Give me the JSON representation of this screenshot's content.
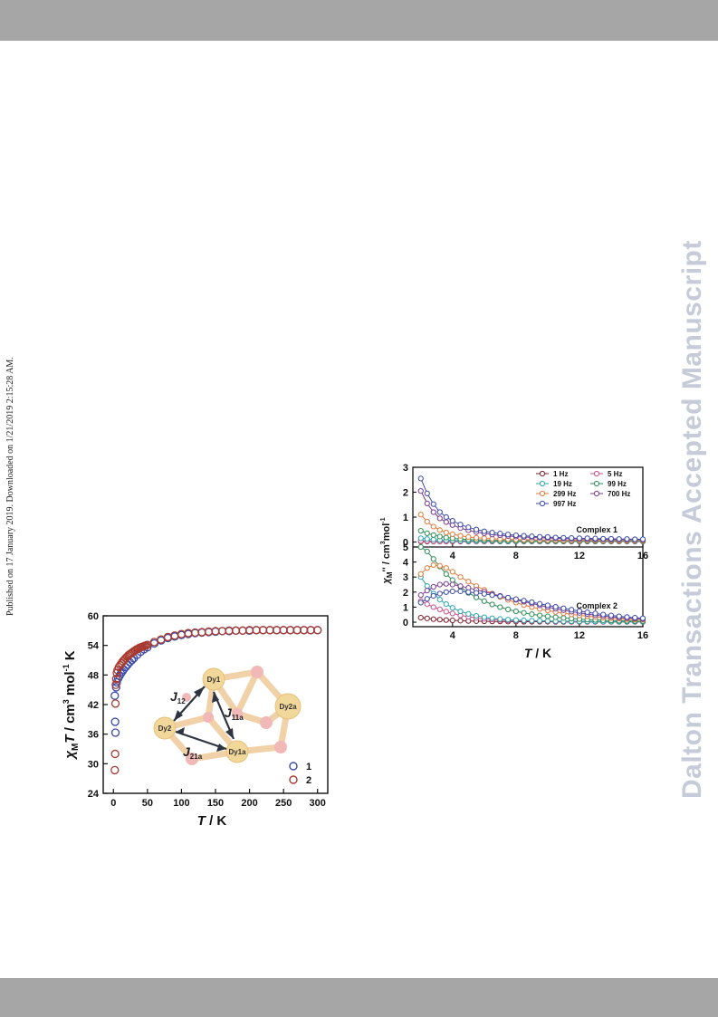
{
  "side_note": "Published on 17 January 2019. Downloaded on 1/21/2019 2:15:28 AM.",
  "watermark": "Dalton Transactions Accepted Manuscript",
  "chart_data": [
    {
      "type": "scatter",
      "xlabel_italic": "T",
      "xlabel_unit": " / K",
      "ylabel_chi": "χ",
      "ylabel_sub": "M",
      "ylabel_T": "T",
      "ylabel_unit_pre": " / cm",
      "ylabel_sup3": "3",
      "ylabel_mol": " mol",
      "ylabel_sup_neg1": "-1",
      "ylabel_k": " K",
      "xlim": [
        -15,
        315
      ],
      "ylim": [
        24,
        60
      ],
      "xticks": [
        "0",
        "50",
        "100",
        "150",
        "200",
        "250",
        "300"
      ],
      "yticks": [
        "24",
        "30",
        "36",
        "42",
        "48",
        "54",
        "60"
      ],
      "legend_position": "bottom-right",
      "series": [
        {
          "name": "1",
          "color": "#3b4aa8",
          "x": [
            2,
            2.5,
            3,
            4,
            5,
            7,
            9,
            11,
            13,
            15,
            18,
            21,
            24,
            27,
            30,
            35,
            40,
            45,
            50,
            60,
            70,
            80,
            90,
            100,
            110,
            120,
            130,
            140,
            150,
            160,
            170,
            180,
            190,
            200,
            210,
            220,
            230,
            240,
            250,
            260,
            270,
            280,
            290,
            300
          ],
          "y": [
            43.8,
            38.5,
            36.3,
            45.5,
            46.5,
            47.3,
            47.8,
            48.3,
            48.7,
            49.1,
            49.6,
            50.1,
            50.6,
            51.0,
            51.4,
            52.1,
            52.7,
            53.2,
            53.6,
            54.4,
            55.0,
            55.5,
            55.8,
            56.1,
            56.3,
            56.5,
            56.6,
            56.7,
            56.8,
            56.9,
            56.9,
            57.0,
            57.0,
            57.0,
            57.1,
            57.1,
            57.1,
            57.1,
            57.1,
            57.1,
            57.1,
            57.1,
            57.1,
            57.1
          ]
        },
        {
          "name": "2",
          "color": "#a83a30",
          "x": [
            2,
            2.5,
            3,
            3.5,
            4,
            5,
            6,
            8,
            10,
            12,
            14,
            16,
            18,
            20,
            22,
            24,
            26,
            28,
            30,
            32,
            34,
            36,
            38,
            40,
            42,
            44,
            46,
            48,
            50,
            60,
            70,
            80,
            90,
            100,
            110,
            120,
            130,
            140,
            150,
            160,
            170,
            180,
            190,
            200,
            210,
            220,
            230,
            240,
            250,
            260,
            270,
            280,
            290,
            300
          ],
          "y": [
            28.7,
            32.0,
            42.2,
            46.0,
            47.2,
            48.4,
            49.0,
            49.6,
            50.0,
            50.4,
            50.8,
            51.1,
            51.4,
            51.7,
            52.0,
            52.2,
            52.4,
            52.6,
            52.8,
            53.0,
            53.2,
            53.3,
            53.5,
            53.6,
            53.7,
            53.8,
            53.9,
            54.0,
            54.1,
            54.7,
            55.2,
            55.7,
            56.0,
            56.3,
            56.5,
            56.6,
            56.7,
            56.8,
            56.9,
            56.9,
            57.0,
            57.0,
            57.0,
            57.1,
            57.1,
            57.1,
            57.1,
            57.1,
            57.1,
            57.1,
            57.1,
            57.1,
            57.1,
            57.1
          ]
        }
      ],
      "inset_labels": {
        "dy1": "Dy1",
        "dy2": "Dy2",
        "dy1a": "Dy1a",
        "dy2a": "Dy2a",
        "j12": "J",
        "j12_sub": "12",
        "j11a": "J",
        "j11a_sub": "11a",
        "j21a": "J",
        "j21a_sub": "21a"
      }
    },
    {
      "type": "line",
      "xlabel_italic": "T",
      "xlabel_unit": " / K",
      "ylabel_chi": "χ",
      "ylabel_sub": "M",
      "ylabel_quote": "''",
      "ylabel_unit": " / cm",
      "ylabel_sup3": "3",
      "ylabel_mol": "mol",
      "ylabel_sup_neg1": "-1",
      "xlim": [
        1.5,
        16
      ],
      "xticks": [
        "4",
        "8",
        "12",
        "16"
      ],
      "top_panel": {
        "label": "Complex 1",
        "ylim": [
          -0.2,
          3
        ],
        "yticks": [
          "0",
          "1",
          "2",
          "3"
        ]
      },
      "bottom_panel": {
        "label": "Complex 2",
        "ylim": [
          -0.3,
          5
        ],
        "yticks": [
          "0",
          "1",
          "2",
          "3",
          "4",
          "5"
        ]
      },
      "legend_position": "top-right",
      "x": [
        2,
        2.4,
        2.8,
        3.2,
        3.6,
        4,
        4.5,
        5,
        5.5,
        6,
        6.5,
        7,
        7.5,
        8,
        8.5,
        9,
        9.5,
        10,
        10.5,
        11,
        11.5,
        12,
        12.5,
        13,
        13.5,
        14,
        14.5,
        15,
        15.5,
        16
      ],
      "series": [
        {
          "name": "1 Hz",
          "color": "#7a1f2c",
          "top": [
            0.02,
            0.02,
            0.02,
            0.02,
            0.02,
            0.02,
            0.02,
            0.02,
            0.02,
            0.02,
            0.02,
            0.02,
            0.02,
            0.02,
            0.02,
            0.02,
            0.02,
            0.02,
            0.02,
            0.02,
            0.02,
            0.02,
            0.02,
            0.02,
            0.02,
            0.02,
            0.02,
            0.02,
            0.02,
            0.02
          ],
          "bottom": [
            0.3,
            0.25,
            0.2,
            0.17,
            0.14,
            0.12,
            0.1,
            0.08,
            0.07,
            0.06,
            0.05,
            0.05,
            0.04,
            0.04,
            0.03,
            0.03,
            0.03,
            0.03,
            0.02,
            0.02,
            0.02,
            0.02,
            0.02,
            0.02,
            0.02,
            0.02,
            0.02,
            0.02,
            0.02,
            0.02
          ]
        },
        {
          "name": "5 Hz",
          "color": "#c94f8a",
          "top": [
            0.04,
            0.04,
            0.03,
            0.03,
            0.03,
            0.03,
            0.03,
            0.03,
            0.02,
            0.02,
            0.02,
            0.02,
            0.02,
            0.02,
            0.02,
            0.02,
            0.02,
            0.02,
            0.02,
            0.02,
            0.02,
            0.02,
            0.02,
            0.02,
            0.02,
            0.02,
            0.02,
            0.02,
            0.02,
            0.02
          ],
          "bottom": [
            1.4,
            1.2,
            1.0,
            0.85,
            0.7,
            0.58,
            0.45,
            0.36,
            0.28,
            0.22,
            0.18,
            0.15,
            0.12,
            0.1,
            0.09,
            0.08,
            0.07,
            0.06,
            0.05,
            0.05,
            0.04,
            0.04,
            0.04,
            0.03,
            0.03,
            0.03,
            0.03,
            0.03,
            0.03,
            0.03
          ]
        },
        {
          "name": "19 Hz",
          "color": "#2aa6b0",
          "top": [
            0.15,
            0.12,
            0.1,
            0.08,
            0.07,
            0.06,
            0.05,
            0.05,
            0.04,
            0.04,
            0.04,
            0.03,
            0.03,
            0.03,
            0.03,
            0.03,
            0.03,
            0.03,
            0.03,
            0.03,
            0.03,
            0.03,
            0.03,
            0.03,
            0.03,
            0.03,
            0.03,
            0.03,
            0.03,
            0.03
          ],
          "bottom": [
            3.0,
            2.4,
            1.9,
            1.5,
            1.2,
            0.95,
            0.72,
            0.55,
            0.42,
            0.33,
            0.26,
            0.21,
            0.17,
            0.14,
            0.12,
            0.1,
            0.09,
            0.08,
            0.07,
            0.06,
            0.06,
            0.05,
            0.05,
            0.05,
            0.04,
            0.04,
            0.04,
            0.04,
            0.04,
            0.04
          ]
        },
        {
          "name": "99 Hz",
          "color": "#2e8b57",
          "top": [
            0.45,
            0.35,
            0.28,
            0.22,
            0.18,
            0.15,
            0.12,
            0.1,
            0.09,
            0.08,
            0.07,
            0.06,
            0.06,
            0.05,
            0.05,
            0.05,
            0.05,
            0.04,
            0.04,
            0.04,
            0.04,
            0.04,
            0.04,
            0.04,
            0.04,
            0.04,
            0.04,
            0.04,
            0.04,
            0.04
          ],
          "bottom": [
            5.0,
            4.7,
            4.2,
            3.7,
            3.2,
            2.8,
            2.35,
            1.95,
            1.65,
            1.4,
            1.18,
            1.0,
            0.85,
            0.72,
            0.62,
            0.53,
            0.45,
            0.39,
            0.33,
            0.28,
            0.24,
            0.2,
            0.17,
            0.15,
            0.13,
            0.11,
            0.1,
            0.09,
            0.08,
            0.07
          ]
        },
        {
          "name": "299 Hz",
          "color": "#e07b39",
          "top": [
            1.1,
            0.82,
            0.62,
            0.48,
            0.38,
            0.31,
            0.25,
            0.2,
            0.17,
            0.15,
            0.13,
            0.12,
            0.11,
            0.1,
            0.09,
            0.09,
            0.08,
            0.08,
            0.08,
            0.07,
            0.07,
            0.07,
            0.07,
            0.07,
            0.06,
            0.06,
            0.06,
            0.06,
            0.06,
            0.06
          ],
          "bottom": [
            3.2,
            3.6,
            3.8,
            3.75,
            3.6,
            3.35,
            3.0,
            2.7,
            2.4,
            2.15,
            1.9,
            1.68,
            1.48,
            1.3,
            1.14,
            1.0,
            0.88,
            0.78,
            0.68,
            0.6,
            0.52,
            0.45,
            0.4,
            0.35,
            0.3,
            0.26,
            0.23,
            0.2,
            0.18,
            0.16
          ]
        },
        {
          "name": "700 Hz",
          "color": "#7a3b8f",
          "top": [
            2.05,
            1.55,
            1.2,
            0.95,
            0.8,
            0.68,
            0.56,
            0.47,
            0.4,
            0.35,
            0.3,
            0.27,
            0.24,
            0.22,
            0.2,
            0.18,
            0.17,
            0.16,
            0.15,
            0.14,
            0.13,
            0.12,
            0.12,
            0.11,
            0.11,
            0.1,
            0.1,
            0.1,
            0.1,
            0.09
          ],
          "bottom": [
            1.8,
            2.1,
            2.35,
            2.5,
            2.55,
            2.5,
            2.4,
            2.28,
            2.15,
            2.02,
            1.88,
            1.75,
            1.62,
            1.49,
            1.36,
            1.24,
            1.12,
            1.0,
            0.9,
            0.8,
            0.7,
            0.62,
            0.54,
            0.47,
            0.41,
            0.36,
            0.31,
            0.27,
            0.24,
            0.21
          ]
        },
        {
          "name": "997 Hz",
          "color": "#3b4aa8",
          "top": [
            2.55,
            1.95,
            1.52,
            1.2,
            1.0,
            0.85,
            0.7,
            0.59,
            0.5,
            0.43,
            0.38,
            0.34,
            0.3,
            0.27,
            0.25,
            0.23,
            0.21,
            0.2,
            0.18,
            0.17,
            0.16,
            0.15,
            0.15,
            0.14,
            0.13,
            0.13,
            0.12,
            0.12,
            0.11,
            0.11
          ],
          "bottom": [
            1.3,
            1.55,
            1.75,
            1.9,
            2.0,
            2.05,
            2.05,
            2.0,
            1.95,
            1.88,
            1.8,
            1.72,
            1.63,
            1.53,
            1.43,
            1.33,
            1.22,
            1.12,
            1.02,
            0.92,
            0.83,
            0.74,
            0.66,
            0.58,
            0.51,
            0.45,
            0.39,
            0.34,
            0.3,
            0.26
          ]
        }
      ]
    }
  ]
}
